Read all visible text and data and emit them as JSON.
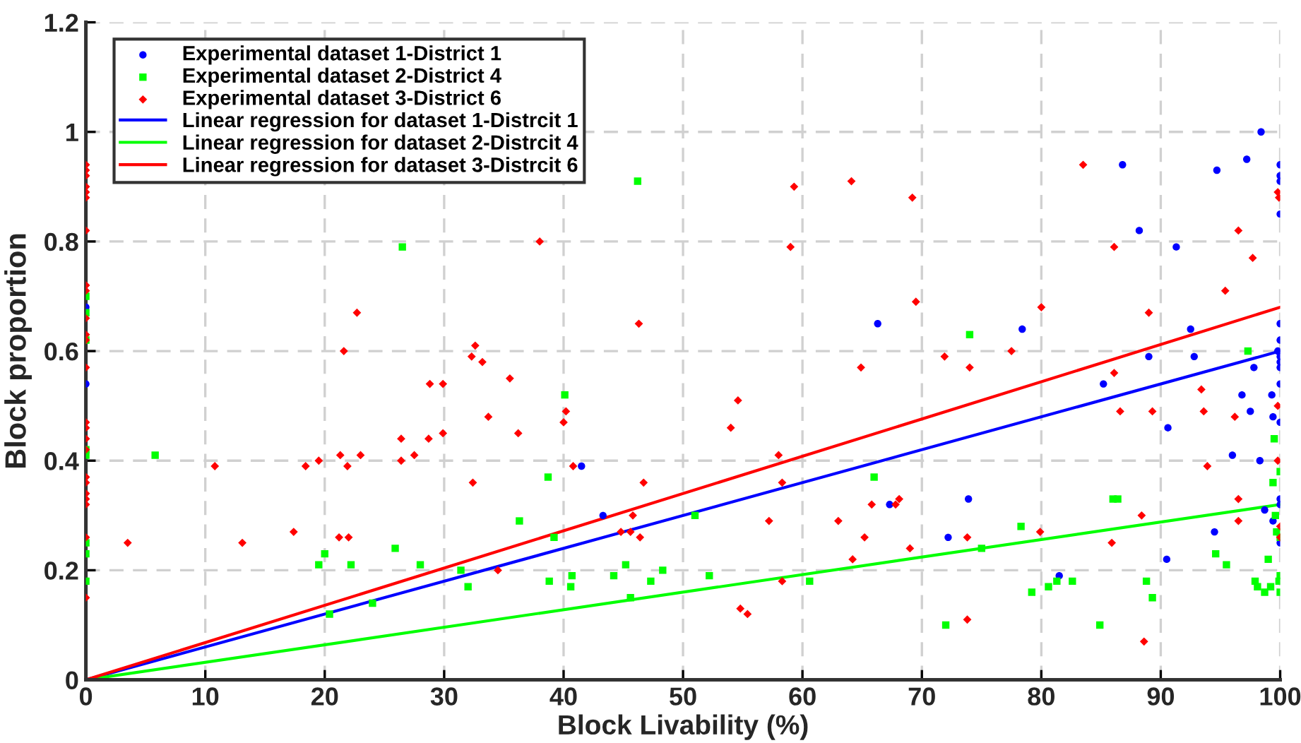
{
  "chart_data": {
    "type": "scatter",
    "xlabel": "Block Livability (%)",
    "ylabel": "Block proportion",
    "xlim": [
      0,
      100
    ],
    "xticks": [
      0,
      10,
      20,
      30,
      40,
      50,
      60,
      70,
      80,
      90,
      100
    ],
    "ylim": [
      0,
      1.2
    ],
    "yticks": [
      0,
      0.2,
      0.4,
      0.6,
      0.8,
      1,
      1.2
    ],
    "grid": true,
    "legend": "top left",
    "series": [
      {
        "name": "Experimental dataset 1-District 1",
        "color": "#0000ff",
        "marker": "circle",
        "x": [
          0,
          0,
          41.5,
          43.3,
          66.3,
          67.3,
          72.2,
          73.9,
          78.4,
          81.5,
          85.2,
          86.8,
          88.2,
          89,
          90.5,
          90.6,
          91.3,
          92.5,
          92.8,
          94.5,
          94.7,
          96,
          96.8,
          97.2,
          97.5,
          97.8,
          98.4,
          98.3,
          98.7,
          99.3,
          99.4,
          99.8,
          99.4,
          100,
          100,
          100,
          100,
          100,
          100,
          100,
          100,
          100,
          100,
          100,
          100,
          100,
          100
        ],
        "values": [
          0.68,
          0.54,
          0.39,
          0.3,
          0.65,
          0.32,
          0.26,
          0.33,
          0.64,
          0.19,
          0.54,
          0.94,
          0.82,
          0.59,
          0.22,
          0.46,
          0.79,
          0.64,
          0.59,
          0.27,
          0.93,
          0.41,
          0.52,
          0.95,
          0.49,
          0.57,
          1.0,
          0.4,
          0.31,
          0.52,
          0.48,
          0.6,
          0.29,
          0.94,
          0.92,
          0.91,
          0.85,
          0.65,
          0.62,
          0.59,
          0.58,
          0.57,
          0.54,
          0.47,
          0.33,
          0.25,
          0.32
        ]
      },
      {
        "name": "Experimental dataset 2-District 4",
        "color": "#00ff00",
        "marker": "square",
        "x": [
          0,
          0,
          0,
          0,
          0,
          0,
          0,
          0,
          5.8,
          19.5,
          20,
          20.4,
          22.2,
          24,
          25.9,
          26.5,
          28,
          31.4,
          32,
          36.3,
          38.7,
          38.8,
          39.2,
          40.1,
          40.6,
          40.7,
          44.2,
          45.2,
          45.6,
          46.2,
          47.3,
          48.3,
          51,
          52.2,
          60.6,
          66,
          74,
          72,
          75,
          78.3,
          79.2,
          80.6,
          81.3,
          82.6,
          84.9,
          86,
          86.4,
          88.8,
          89.3,
          94.6,
          95.5,
          97.3,
          97.9,
          98.1,
          98.7,
          99.2,
          99.4,
          99.6,
          99.7,
          99.5,
          100,
          100,
          100,
          100,
          99,
          99.9
        ],
        "values": [
          0.7,
          0.67,
          0.62,
          0.42,
          0.41,
          0.25,
          0.23,
          0.18,
          0.41,
          0.21,
          0.23,
          0.12,
          0.21,
          0.14,
          0.24,
          0.79,
          0.21,
          0.2,
          0.17,
          0.29,
          0.37,
          0.18,
          0.26,
          0.52,
          0.17,
          0.19,
          0.19,
          0.21,
          0.15,
          0.91,
          0.18,
          0.2,
          0.3,
          0.19,
          0.18,
          0.37,
          0.63,
          0.1,
          0.24,
          0.28,
          0.16,
          0.17,
          0.18,
          0.18,
          0.1,
          0.33,
          0.33,
          0.18,
          0.15,
          0.23,
          0.21,
          0.6,
          0.18,
          0.17,
          0.16,
          0.17,
          0.36,
          0.3,
          0.27,
          0.44,
          0.38,
          0.26,
          0.19,
          0.16,
          0.22,
          0.18
        ]
      },
      {
        "name": "Experimental dataset 3-District 6",
        "color": "#ff0000",
        "marker": "diamond",
        "x": [
          0,
          0,
          0,
          0,
          0,
          0,
          0,
          0,
          0,
          0,
          0,
          0,
          0,
          0,
          0,
          0,
          0,
          0,
          0,
          0,
          0,
          0,
          0,
          0,
          3.5,
          10.8,
          13.1,
          17.4,
          18.4,
          19.5,
          21.2,
          21.3,
          21.6,
          21.9,
          22,
          22.7,
          23,
          26.4,
          26.4,
          27.5,
          28.7,
          28.8,
          29.9,
          29.9,
          32.3,
          32.4,
          32.6,
          33.2,
          33.7,
          34.5,
          35.5,
          36.2,
          38,
          40,
          40.2,
          40.8,
          44.8,
          45.6,
          45.8,
          46.3,
          46.4,
          46.7,
          54,
          54.6,
          54.8,
          55.4,
          57.2,
          58,
          58.3,
          58.3,
          59,
          59.3,
          63,
          64.1,
          64.2,
          64.9,
          65.2,
          65.8,
          67.8,
          68.1,
          69,
          69.2,
          69.5,
          71.9,
          73.8,
          74,
          73.8,
          77.5,
          80,
          79.9,
          83.5,
          85.9,
          86.1,
          86.1,
          86.6,
          88.4,
          88.6,
          89,
          89.3,
          93.4,
          93.6,
          93.9,
          95.4,
          96.2,
          96.5,
          96.5,
          96.5,
          97.7,
          99.8,
          99.9,
          99.8,
          99.8,
          100,
          100
        ],
        "values": [
          0.94,
          0.93,
          0.92,
          0.9,
          0.89,
          0.88,
          0.82,
          0.72,
          0.71,
          0.66,
          0.63,
          0.62,
          0.57,
          0.47,
          0.46,
          0.44,
          0.42,
          0.37,
          0.36,
          0.34,
          0.33,
          0.32,
          0.26,
          0.15,
          0.25,
          0.39,
          0.25,
          0.27,
          0.39,
          0.4,
          0.26,
          0.41,
          0.6,
          0.39,
          0.26,
          0.67,
          0.41,
          0.44,
          0.4,
          0.41,
          0.44,
          0.54,
          0.54,
          0.45,
          0.59,
          0.36,
          0.61,
          0.58,
          0.48,
          0.2,
          0.55,
          0.45,
          0.8,
          0.47,
          0.49,
          0.39,
          0.27,
          0.27,
          0.3,
          0.65,
          0.26,
          0.36,
          0.46,
          0.51,
          0.13,
          0.12,
          0.29,
          0.41,
          0.36,
          0.18,
          0.79,
          0.9,
          0.29,
          0.91,
          0.22,
          0.57,
          0.26,
          0.32,
          0.32,
          0.33,
          0.24,
          0.88,
          0.69,
          0.59,
          0.26,
          0.57,
          0.11,
          0.6,
          0.68,
          0.27,
          0.94,
          0.25,
          0.79,
          0.56,
          0.49,
          0.3,
          0.07,
          0.67,
          0.49,
          0.53,
          0.49,
          0.39,
          0.71,
          0.48,
          0.82,
          0.29,
          0.33,
          0.77,
          0.89,
          0.88,
          0.5,
          0.4,
          0.28,
          0.26
        ]
      },
      {
        "name": "Linear regression for dataset 1-Distrcit 1",
        "type": "line",
        "color": "#0000ff",
        "marker": "none",
        "x": [
          0,
          100
        ],
        "values": [
          0,
          0.6
        ]
      },
      {
        "name": "Linear regression for dataset 2-Distrcit 4",
        "type": "line",
        "color": "#00ff00",
        "marker": "none",
        "x": [
          0,
          100
        ],
        "values": [
          0,
          0.32
        ]
      },
      {
        "name": "Linear regression for dataset 3-Distrcit 6",
        "type": "line",
        "color": "#ff0000",
        "marker": "none",
        "x": [
          0,
          100
        ],
        "values": [
          0,
          0.68
        ]
      }
    ]
  }
}
